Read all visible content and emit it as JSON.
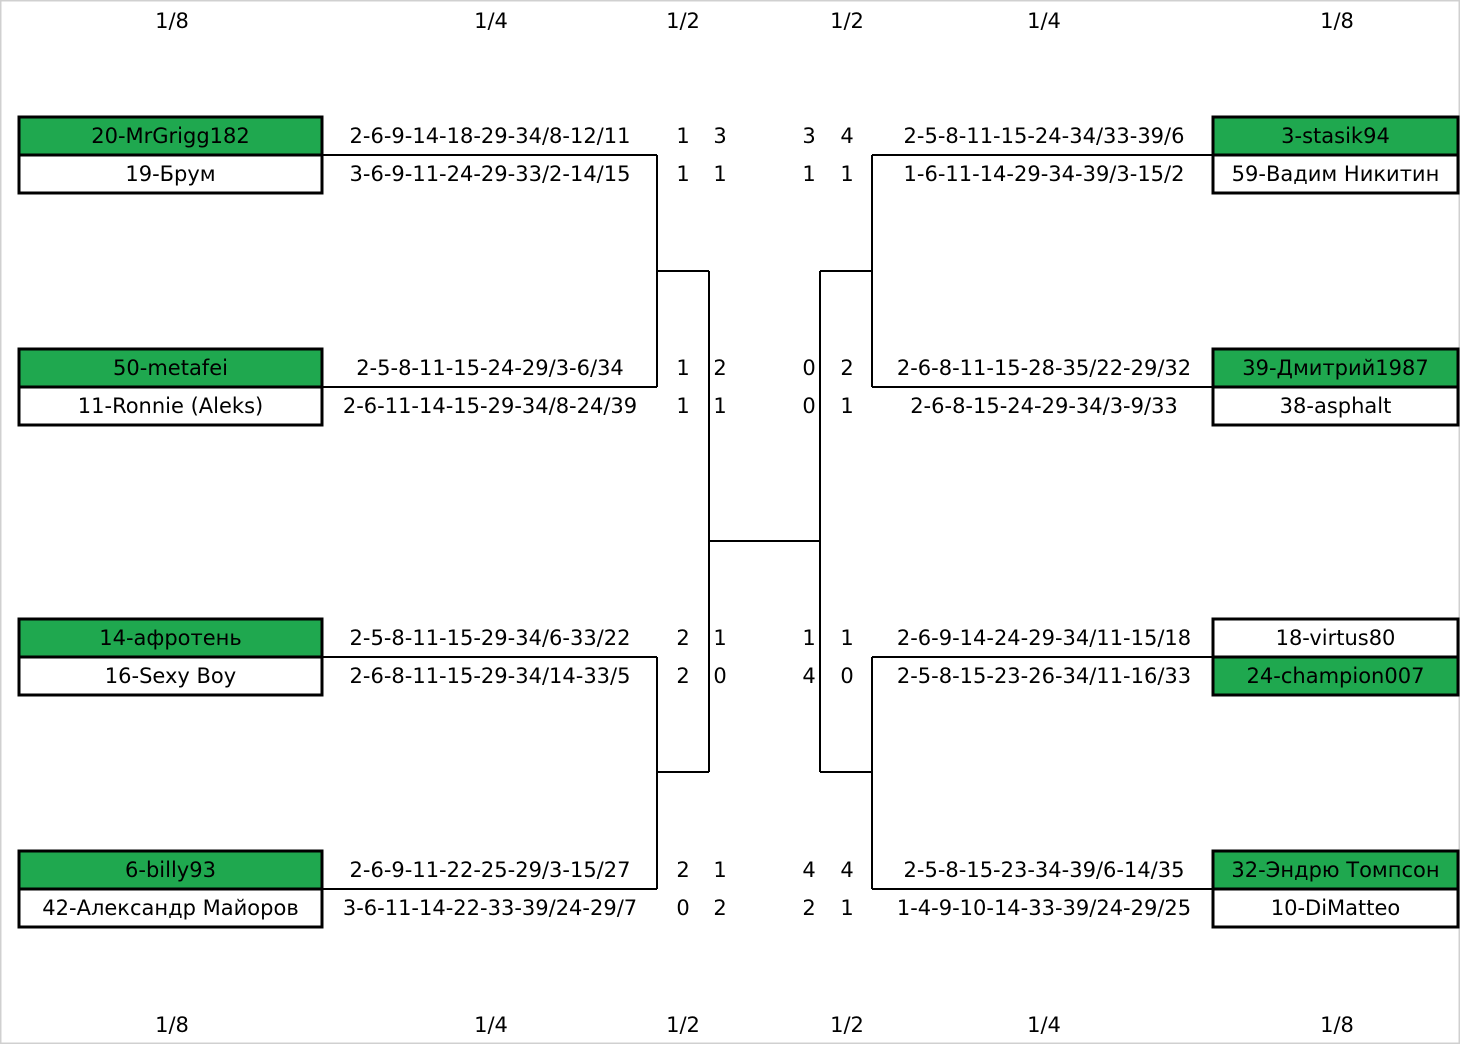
{
  "rounds_top": [
    "1/8",
    "1/4",
    "1/2",
    "1/2",
    "1/4",
    "1/8"
  ],
  "rounds_bottom": [
    "1/8",
    "1/4",
    "1/2",
    "1/2",
    "1/4",
    "1/8"
  ],
  "left": [
    {
      "players": [
        "20-MrGrigg182",
        "19-Брум"
      ],
      "winner": 0,
      "sequences": [
        "2-6-9-14-18-29-34/8-12/11",
        "3-6-9-11-24-29-33/2-14/15"
      ],
      "scores": [
        [
          1,
          3
        ],
        [
          1,
          1
        ]
      ]
    },
    {
      "players": [
        "50-metafei",
        "11-Ronnie (Aleks)"
      ],
      "winner": 0,
      "sequences": [
        "2-5-8-11-15-24-29/3-6/34",
        "2-6-11-14-15-29-34/8-24/39"
      ],
      "scores": [
        [
          1,
          2
        ],
        [
          1,
          1
        ]
      ]
    },
    {
      "players": [
        "14-афротень",
        "16-Sexy Boy"
      ],
      "winner": 0,
      "sequences": [
        "2-5-8-11-15-29-34/6-33/22",
        "2-6-8-11-15-29-34/14-33/5"
      ],
      "scores": [
        [
          2,
          1
        ],
        [
          2,
          0
        ]
      ]
    },
    {
      "players": [
        "6-billy93",
        "42-Александр Майоров"
      ],
      "winner": 0,
      "sequences": [
        "2-6-9-11-22-25-29/3-15/27",
        "3-6-11-14-22-33-39/24-29/7"
      ],
      "scores": [
        [
          2,
          1
        ],
        [
          0,
          2
        ]
      ]
    }
  ],
  "right": [
    {
      "players": [
        "3-stasik94",
        "59-Вадим Никитин"
      ],
      "winner": 0,
      "sequences": [
        "2-5-8-11-15-24-34/33-39/6",
        "1-6-11-14-29-34-39/3-15/2"
      ],
      "scores": [
        [
          3,
          4
        ],
        [
          1,
          1
        ]
      ]
    },
    {
      "players": [
        "39-Дмитрий1987",
        "38-asphalt"
      ],
      "winner": 0,
      "sequences": [
        "2-6-8-11-15-28-35/22-29/32",
        "2-6-8-15-24-29-34/3-9/33"
      ],
      "scores": [
        [
          0,
          2
        ],
        [
          0,
          1
        ]
      ]
    },
    {
      "players": [
        "18-virtus80",
        "24-champion007"
      ],
      "winner": 1,
      "sequences": [
        "2-6-9-14-24-29-34/11-15/18",
        "2-5-8-15-23-26-34/11-16/33"
      ],
      "scores": [
        [
          1,
          1
        ],
        [
          4,
          0
        ]
      ]
    },
    {
      "players": [
        "32-Эндрю Томпсон",
        "10-DiMatteo"
      ],
      "winner": 0,
      "sequences": [
        "2-5-8-15-23-34-39/6-14/35",
        "1-4-9-10-14-33-39/24-29/25"
      ],
      "scores": [
        [
          4,
          4
        ],
        [
          2,
          1
        ]
      ]
    }
  ]
}
